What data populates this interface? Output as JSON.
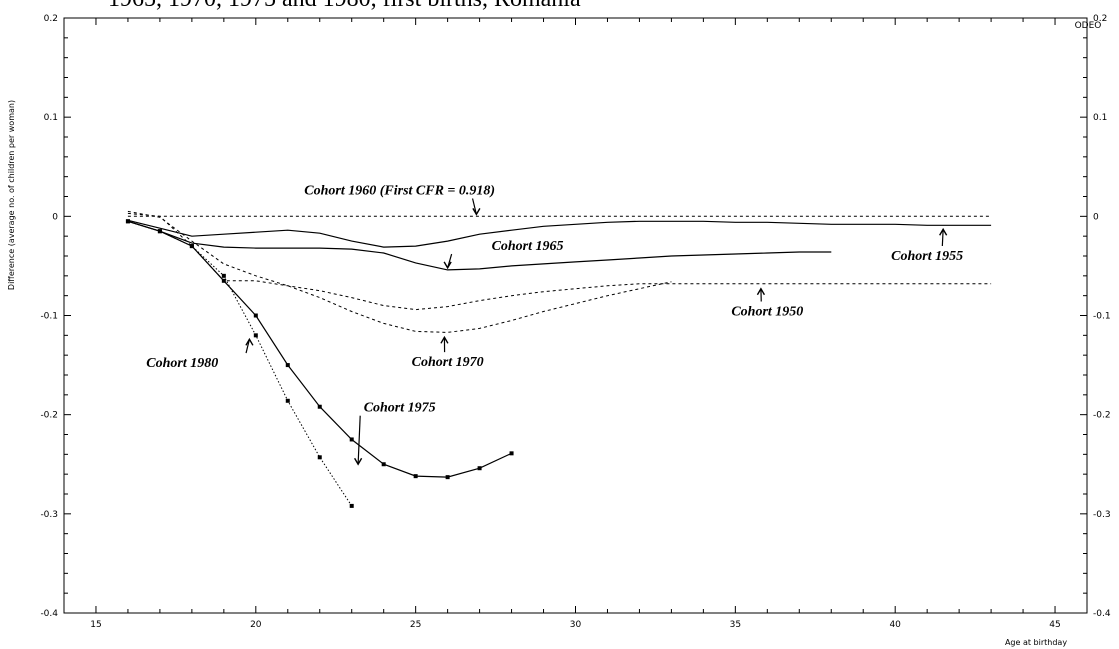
{
  "chart_data": {
    "type": "line",
    "title": "1965, 1970, 1975 and 1980, first births, Romania",
    "xlabel": "Age at birthday",
    "ylabel": "Difference (average no. of children per woman)",
    "watermark": "ODEO",
    "xlim": [
      14,
      46
    ],
    "ylim": [
      -0.4,
      0.2
    ],
    "x_ticks": [
      15,
      20,
      25,
      30,
      35,
      40,
      45
    ],
    "x_tick_labels": [
      "15",
      "20",
      "25",
      "30",
      "35",
      "40",
      "45"
    ],
    "y_ticks": [
      -0.4,
      -0.3,
      -0.2,
      -0.1,
      0,
      0.1,
      0.2
    ],
    "y_tick_labels": [
      "-0.4",
      "-0.3",
      "-0.2",
      "-0.1",
      "0",
      "0.1",
      "0.2"
    ],
    "y_tick_labels_right": [
      "-0.4",
      "-0.3",
      "-0.2",
      "-0.1",
      "0",
      "0.1",
      "0.2"
    ],
    "grid": false,
    "legend": "none",
    "series": [
      {
        "name": "Cohort 1960",
        "style": "dashed",
        "x": [
          16,
          43
        ],
        "y": [
          0,
          0
        ]
      },
      {
        "name": "Cohort 1955",
        "style": "solid",
        "x": [
          16,
          17,
          18,
          19,
          20,
          21,
          22,
          23,
          24,
          25,
          26,
          27,
          28,
          29,
          30,
          31,
          32,
          33,
          34,
          35,
          36,
          37,
          38,
          39,
          40,
          41,
          42,
          43
        ],
        "y": [
          -0.004,
          -0.012,
          -0.02,
          -0.018,
          -0.016,
          -0.014,
          -0.017,
          -0.025,
          -0.031,
          -0.03,
          -0.025,
          -0.018,
          -0.014,
          -0.01,
          -0.008,
          -0.006,
          -0.005,
          -0.005,
          -0.005,
          -0.006,
          -0.006,
          -0.007,
          -0.008,
          -0.008,
          -0.008,
          -0.009,
          -0.009,
          -0.009
        ]
      },
      {
        "name": "Cohort 1965",
        "style": "solid",
        "x": [
          16,
          17,
          18,
          19,
          20,
          21,
          22,
          23,
          24,
          25,
          26,
          27,
          28,
          29,
          30,
          31,
          32,
          33,
          34,
          35,
          36,
          37,
          38
        ],
        "y": [
          -0.005,
          -0.015,
          -0.027,
          -0.031,
          -0.032,
          -0.032,
          -0.032,
          -0.033,
          -0.037,
          -0.047,
          -0.054,
          -0.053,
          -0.05,
          -0.048,
          -0.046,
          -0.044,
          -0.042,
          -0.04,
          -0.039,
          -0.038,
          -0.037,
          -0.036,
          -0.036
        ]
      },
      {
        "name": "Cohort 1950",
        "style": "dashed",
        "x": [
          16,
          17,
          18,
          19,
          20,
          21,
          22,
          23,
          24,
          25,
          26,
          27,
          28,
          29,
          30,
          31,
          32,
          33,
          34,
          35,
          36,
          37,
          38,
          39,
          40,
          41,
          42,
          43
        ],
        "y": [
          0.003,
          0.0,
          -0.03,
          -0.065,
          -0.065,
          -0.07,
          -0.075,
          -0.082,
          -0.09,
          -0.094,
          -0.091,
          -0.085,
          -0.08,
          -0.076,
          -0.073,
          -0.07,
          -0.068,
          -0.068,
          -0.068,
          -0.068,
          -0.068,
          -0.068,
          -0.068,
          -0.068,
          -0.068,
          -0.068,
          -0.068,
          -0.068
        ]
      },
      {
        "name": "Cohort 1970",
        "style": "dashed",
        "x": [
          16,
          17,
          18,
          19,
          20,
          21,
          22,
          23,
          24,
          25,
          26,
          27,
          28,
          29,
          30,
          31,
          32,
          33
        ],
        "y": [
          0.005,
          -0.001,
          -0.025,
          -0.048,
          -0.06,
          -0.07,
          -0.082,
          -0.096,
          -0.108,
          -0.116,
          -0.117,
          -0.113,
          -0.105,
          -0.096,
          -0.088,
          -0.08,
          -0.073,
          -0.066
        ]
      },
      {
        "name": "Cohort 1975",
        "style": "solid",
        "markers": true,
        "x": [
          16,
          17,
          18,
          19,
          20,
          21,
          22,
          23,
          24,
          25,
          26,
          27,
          28
        ],
        "y": [
          -0.005,
          -0.015,
          -0.03,
          -0.065,
          -0.1,
          -0.15,
          -0.192,
          -0.225,
          -0.25,
          -0.262,
          -0.263,
          -0.254,
          -0.239
        ]
      },
      {
        "name": "Cohort 1980",
        "style": "dotted",
        "markers": true,
        "x": [
          16,
          17,
          18,
          19,
          20,
          21,
          22,
          23
        ],
        "y": [
          -0.005,
          -0.015,
          -0.03,
          -0.06,
          -0.12,
          -0.186,
          -0.243,
          -0.292
        ]
      }
    ],
    "annotations": [
      {
        "text": "Cohort 1960 (First CFR = 0.918)",
        "x": 24.5,
        "y": 0.022,
        "arrow_to": [
          26.9,
          0.002
        ]
      },
      {
        "text": "Cohort 1955",
        "x": 41,
        "y": -0.044,
        "arrow_to": [
          41.5,
          -0.013
        ]
      },
      {
        "text": "Cohort 1965",
        "x": 28.5,
        "y": -0.034,
        "arrow_to": [
          26,
          -0.052
        ]
      },
      {
        "text": "Cohort 1950",
        "x": 36,
        "y": -0.1,
        "arrow_to": [
          35.8,
          -0.073
        ]
      },
      {
        "text": "Cohort 1970",
        "x": 26,
        "y": -0.151,
        "arrow_to": [
          25.9,
          -0.122
        ]
      },
      {
        "text": "Cohort 1980",
        "x": 17.7,
        "y": -0.152,
        "arrow_to": [
          19.8,
          -0.124
        ]
      },
      {
        "text": "Cohort 1975",
        "x": 24.5,
        "y": -0.197,
        "arrow_to": [
          23.2,
          -0.25
        ]
      }
    ]
  }
}
